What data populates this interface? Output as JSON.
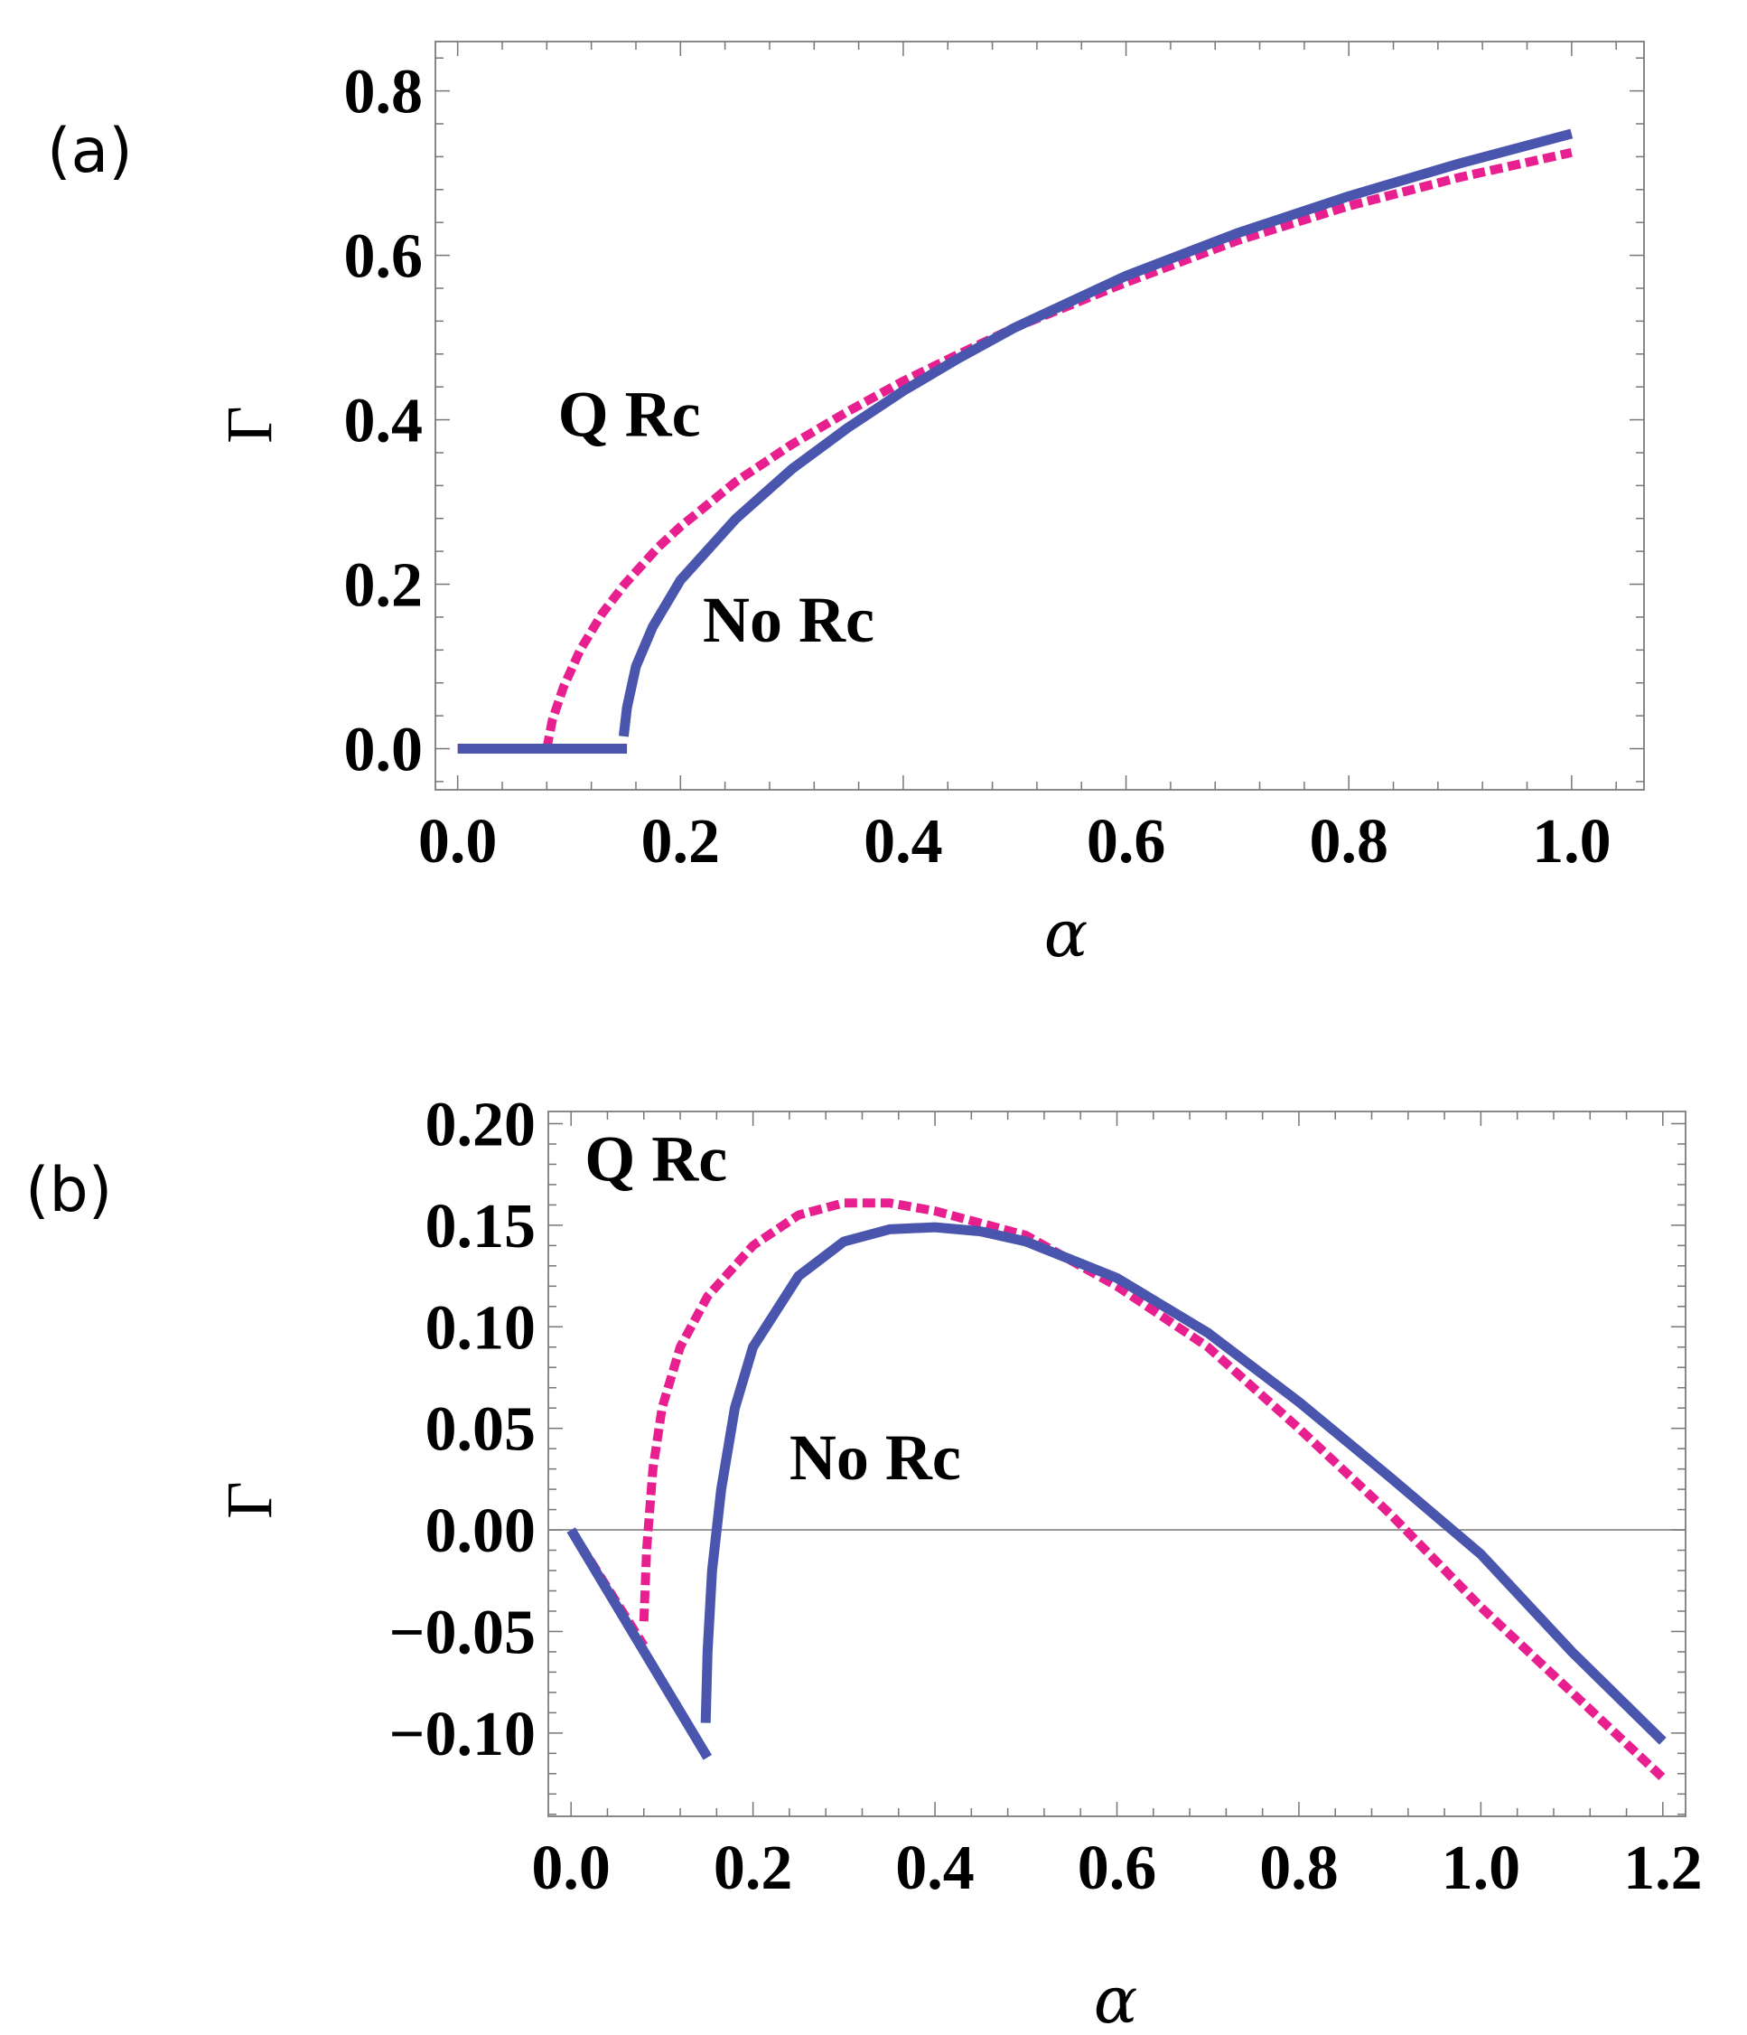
{
  "colors": {
    "no_rc": "#4a56ad",
    "q_rc": "#e8208f",
    "frame": "#888888"
  },
  "chart_data": [
    {
      "panel": "(a)",
      "type": "line",
      "xlabel": "α",
      "ylabel": "Γ",
      "xlim": [
        -0.02,
        1.065
      ],
      "ylim": [
        -0.05,
        0.86
      ],
      "xticks": [
        0.0,
        0.2,
        0.4,
        0.6,
        0.8,
        1.0
      ],
      "xtick_labels": [
        "0.0",
        "0.2",
        "0.4",
        "0.6",
        "0.8",
        "1.0"
      ],
      "yticks": [
        0.0,
        0.2,
        0.4,
        0.6,
        0.8
      ],
      "ytick_labels": [
        "0.0",
        "0.2",
        "0.4",
        "0.6",
        "0.8"
      ],
      "zero_line": false,
      "annotations": [
        {
          "text": "Q Rc",
          "x": 0.09,
          "y": 0.38
        },
        {
          "text": "No Rc",
          "x": 0.22,
          "y": 0.13
        }
      ],
      "series": [
        {
          "name": "Q Rc",
          "style": "dashed",
          "color": "#e8208f",
          "segments": [
            [
              [
                0.0,
                0.0
              ],
              [
                0.08,
                0.0
              ]
            ],
            [
              [
                0.08,
                0.0
              ],
              [
                0.085,
                0.035
              ],
              [
                0.095,
                0.075
              ],
              [
                0.11,
                0.12
              ],
              [
                0.13,
                0.165
              ],
              [
                0.15,
                0.2
              ],
              [
                0.18,
                0.245
              ],
              [
                0.2,
                0.27
              ],
              [
                0.25,
                0.325
              ],
              [
                0.3,
                0.37
              ],
              [
                0.35,
                0.41
              ],
              [
                0.4,
                0.447
              ],
              [
                0.45,
                0.48
              ],
              [
                0.5,
                0.512
              ],
              [
                0.6,
                0.567
              ],
              [
                0.7,
                0.618
              ],
              [
                0.8,
                0.66
              ],
              [
                0.9,
                0.695
              ],
              [
                1.0,
                0.725
              ]
            ]
          ]
        },
        {
          "name": "No Rc",
          "style": "solid",
          "color": "#4a56ad",
          "segments": [
            [
              [
                0.0,
                0.0
              ],
              [
                0.152,
                0.0
              ]
            ],
            [
              [
                0.149,
                0.015
              ],
              [
                0.152,
                0.05
              ],
              [
                0.16,
                0.1
              ],
              [
                0.175,
                0.148
              ],
              [
                0.2,
                0.205
              ],
              [
                0.25,
                0.28
              ],
              [
                0.3,
                0.34
              ],
              [
                0.35,
                0.39
              ],
              [
                0.4,
                0.435
              ],
              [
                0.45,
                0.475
              ],
              [
                0.5,
                0.512
              ],
              [
                0.6,
                0.575
              ],
              [
                0.7,
                0.627
              ],
              [
                0.8,
                0.672
              ],
              [
                0.9,
                0.712
              ],
              [
                1.0,
                0.748
              ]
            ]
          ]
        }
      ]
    },
    {
      "panel": "(b)",
      "type": "line",
      "xlabel": "α",
      "ylabel": "Γ",
      "xlim": [
        -0.025,
        1.225
      ],
      "ylim": [
        -0.141,
        0.206
      ],
      "xticks": [
        0.0,
        0.2,
        0.4,
        0.6,
        0.8,
        1.0,
        1.2
      ],
      "xtick_labels": [
        "0.0",
        "0.2",
        "0.4",
        "0.6",
        "0.8",
        "1.0",
        "1.2"
      ],
      "yticks": [
        -0.1,
        -0.05,
        0.0,
        0.05,
        0.1,
        0.15,
        0.2
      ],
      "ytick_labels": [
        "−0.10",
        "−0.05",
        "0.00",
        "0.05",
        "0.10",
        "0.15",
        "0.20"
      ],
      "zero_line": true,
      "annotations": [
        {
          "text": "Q Rc",
          "x": 0.015,
          "y": 0.172
        },
        {
          "text": "No Rc",
          "x": 0.24,
          "y": 0.025
        }
      ],
      "series": [
        {
          "name": "Q Rc",
          "style": "dashed",
          "color": "#e8208f",
          "segments": [
            [
              [
                0.0,
                0.0
              ],
              [
                0.08,
                -0.057
              ]
            ],
            [
              [
                0.08,
                -0.045
              ],
              [
                0.083,
                -0.01
              ],
              [
                0.09,
                0.03
              ],
              [
                0.1,
                0.06
              ],
              [
                0.12,
                0.09
              ],
              [
                0.15,
                0.115
              ],
              [
                0.2,
                0.14
              ],
              [
                0.25,
                0.155
              ],
              [
                0.3,
                0.161
              ],
              [
                0.35,
                0.161
              ],
              [
                0.4,
                0.157
              ],
              [
                0.5,
                0.145
              ],
              [
                0.6,
                0.12
              ],
              [
                0.7,
                0.09
              ],
              [
                0.8,
                0.05
              ],
              [
                0.9,
                0.008
              ],
              [
                1.0,
                -0.038
              ],
              [
                1.1,
                -0.08
              ],
              [
                1.2,
                -0.122
              ]
            ]
          ]
        },
        {
          "name": "No Rc",
          "style": "solid",
          "color": "#4a56ad",
          "segments": [
            [
              [
                0.0,
                0.0
              ],
              [
                0.15,
                -0.112
              ]
            ],
            [
              [
                0.148,
                -0.095
              ],
              [
                0.15,
                -0.06
              ],
              [
                0.155,
                -0.02
              ],
              [
                0.165,
                0.02
              ],
              [
                0.18,
                0.06
              ],
              [
                0.2,
                0.09
              ],
              [
                0.25,
                0.125
              ],
              [
                0.3,
                0.142
              ],
              [
                0.35,
                0.148
              ],
              [
                0.4,
                0.149
              ],
              [
                0.45,
                0.147
              ],
              [
                0.5,
                0.142
              ],
              [
                0.6,
                0.124
              ],
              [
                0.7,
                0.097
              ],
              [
                0.8,
                0.063
              ],
              [
                0.9,
                0.026
              ],
              [
                1.0,
                -0.012
              ],
              [
                1.1,
                -0.06
              ],
              [
                1.2,
                -0.104
              ]
            ]
          ]
        }
      ]
    }
  ]
}
